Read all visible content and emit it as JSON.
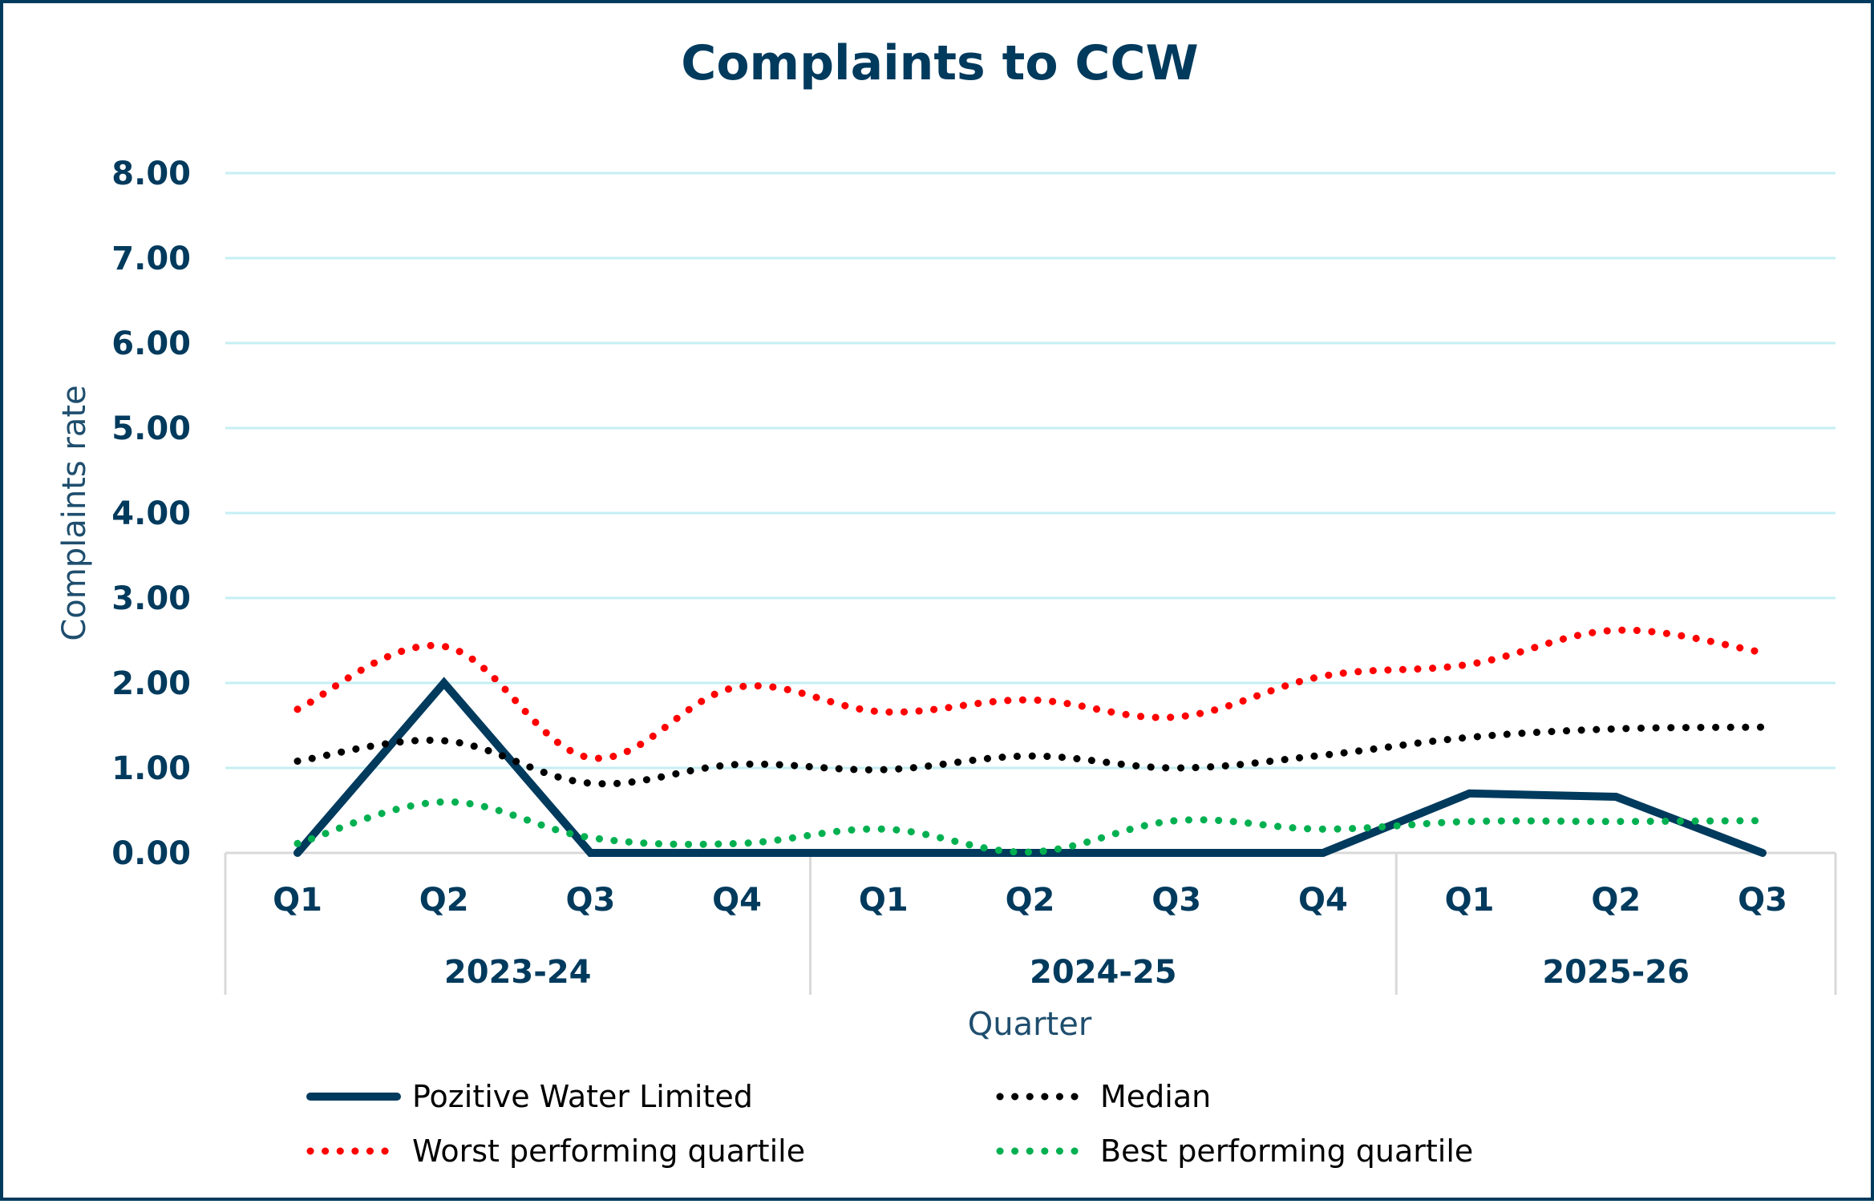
{
  "chart_data": {
    "type": "line",
    "title": "Complaints to CCW",
    "xlabel": "Quarter",
    "ylabel": "Complaints rate",
    "ylim": [
      0,
      8
    ],
    "yticks": [
      "0.00",
      "1.00",
      "2.00",
      "3.00",
      "4.00",
      "5.00",
      "6.00",
      "7.00",
      "8.00"
    ],
    "grid": true,
    "legend_position": "bottom",
    "categories": [
      "Q1",
      "Q2",
      "Q3",
      "Q4",
      "Q1",
      "Q2",
      "Q3",
      "Q4",
      "Q1",
      "Q2",
      "Q3"
    ],
    "groups": [
      {
        "label": "2023-24",
        "count": 4
      },
      {
        "label": "2024-25",
        "count": 4
      },
      {
        "label": "2025-26",
        "count": 3
      }
    ],
    "series": [
      {
        "name": "Pozitive Water Limited",
        "color": "#003a5d",
        "style": "solid",
        "values": [
          0.0,
          2.0,
          0.0,
          0.0,
          0.0,
          0.0,
          0.0,
          0.0,
          0.7,
          0.66,
          0.0
        ]
      },
      {
        "name": "Median",
        "color": "#000000",
        "style": "dotted",
        "values": [
          1.08,
          1.32,
          0.82,
          1.04,
          0.98,
          1.14,
          1.0,
          1.15,
          1.36,
          1.46,
          1.48
        ]
      },
      {
        "name": "Worst performing quartile",
        "color": "#ff0000",
        "style": "dotted",
        "values": [
          1.69,
          2.43,
          1.12,
          1.95,
          1.66,
          1.8,
          1.6,
          2.08,
          2.22,
          2.62,
          2.36
        ]
      },
      {
        "name": "Best performing quartile",
        "color": "#00b050",
        "style": "dotted",
        "values": [
          0.11,
          0.6,
          0.18,
          0.11,
          0.28,
          0.01,
          0.38,
          0.28,
          0.37,
          0.37,
          0.38
        ]
      }
    ]
  },
  "colors": {
    "frame": "#003a5d",
    "text": "#003a5d",
    "gridline": "#c5eff3",
    "axis_line": "#d9d9d9"
  }
}
